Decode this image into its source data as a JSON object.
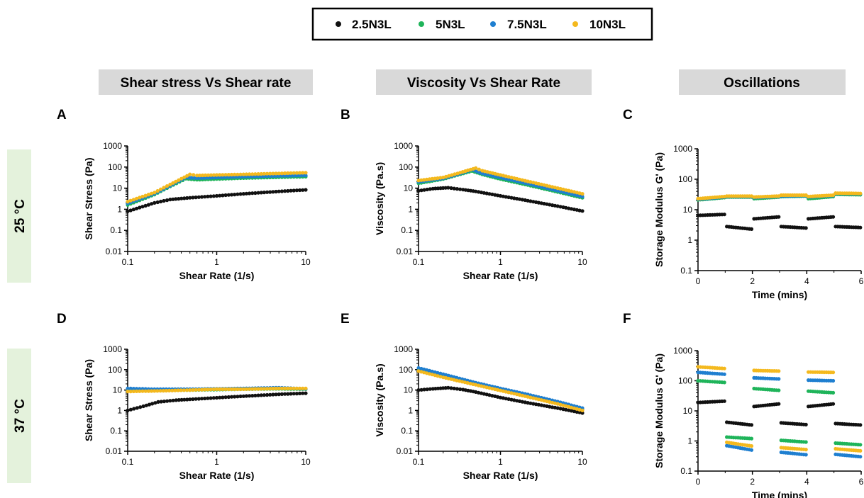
{
  "legend": {
    "entries": [
      "2.5N3L",
      "5N3L",
      "7.5N3L",
      "10N3L"
    ]
  },
  "columns": [
    "Shear stress Vs Shear rate",
    "Viscosity Vs Shear Rate",
    "Oscillations"
  ],
  "rows": [
    "25 °C",
    "37 °C"
  ],
  "colors": {
    "2.5N3L": "#111111",
    "5N3L": "#1fb45a",
    "7.5N3L": "#1f7fd0",
    "10N3L": "#f4b91e",
    "header_bg": "#d9d9d9",
    "row_bg": "#e4f2dc"
  },
  "chart_data": [
    {
      "panel": "A",
      "type": "line",
      "xscale": "log",
      "yscale": "log",
      "xlabel": "Shear Rate (1/s)",
      "ylabel": "Shear Stress (Pa)",
      "xlim": [
        0.1,
        10
      ],
      "ylim": [
        0.01,
        1000
      ],
      "xticks": [
        "0.1",
        "1",
        "10"
      ],
      "yticks": [
        "0.01",
        "0.1",
        "1",
        "10",
        "100",
        "1000"
      ],
      "series": [
        {
          "name": "2.5N3L",
          "x": [
            0.1,
            0.2,
            0.3,
            0.5,
            1,
            2,
            5,
            10
          ],
          "y": [
            0.8,
            2.0,
            2.9,
            3.5,
            4.3,
            5.4,
            7.0,
            8.3
          ]
        },
        {
          "name": "5N3L",
          "x": [
            0.1,
            0.2,
            0.3,
            0.45,
            0.6,
            1,
            2,
            5,
            10
          ],
          "y": [
            1.6,
            5.0,
            12,
            28,
            25,
            27,
            30,
            33,
            35
          ]
        },
        {
          "name": "7.5N3L",
          "x": [
            0.1,
            0.2,
            0.3,
            0.45,
            0.6,
            1,
            2,
            5,
            10
          ],
          "y": [
            1.9,
            5.5,
            13,
            32,
            30,
            32,
            35,
            38,
            40
          ]
        },
        {
          "name": "10N3L",
          "x": [
            0.1,
            0.2,
            0.3,
            0.5,
            0.6,
            1,
            2,
            5,
            10
          ],
          "y": [
            2.3,
            6.2,
            15,
            45,
            40,
            42,
            45,
            50,
            54
          ]
        }
      ]
    },
    {
      "panel": "B",
      "type": "line",
      "xscale": "log",
      "yscale": "log",
      "xlabel": "Shear Rate (1/s)",
      "ylabel": "Viscosity (Pa.s)",
      "xlim": [
        0.1,
        10
      ],
      "ylim": [
        0.01,
        1000
      ],
      "xticks": [
        "0.1",
        "1",
        "10"
      ],
      "yticks": [
        "0.01",
        "0.1",
        "1",
        "10",
        "100",
        "1000"
      ],
      "series": [
        {
          "name": "2.5N3L",
          "x": [
            0.1,
            0.15,
            0.23,
            0.35,
            0.5,
            1,
            2,
            5,
            10
          ],
          "y": [
            7.5,
            9.5,
            10.5,
            8.5,
            7,
            4.3,
            2.7,
            1.4,
            0.83
          ]
        },
        {
          "name": "5N3L",
          "x": [
            0.1,
            0.2,
            0.3,
            0.45,
            0.6,
            1,
            2,
            5,
            10
          ],
          "y": [
            17,
            27,
            42,
            65,
            45,
            27,
            15,
            6.6,
            3.5
          ]
        },
        {
          "name": "7.5N3L",
          "x": [
            0.1,
            0.2,
            0.3,
            0.45,
            0.6,
            1,
            2,
            5,
            10
          ],
          "y": [
            20,
            29,
            45,
            75,
            50,
            32,
            17.5,
            7.6,
            4.0
          ]
        },
        {
          "name": "10N3L",
          "x": [
            0.1,
            0.2,
            0.3,
            0.5,
            0.6,
            1,
            2,
            5,
            10
          ],
          "y": [
            23,
            32,
            50,
            90,
            67,
            42,
            22.5,
            10,
            5.4
          ]
        }
      ]
    },
    {
      "panel": "C",
      "type": "scatter",
      "xscale": "linear",
      "yscale": "log",
      "xlabel": "Time (mins)",
      "ylabel": "Storage Modulus G' (Pa)",
      "xlim": [
        0,
        6
      ],
      "ylim": [
        0.1,
        1000
      ],
      "xticks": [
        "0",
        "2",
        "4",
        "6"
      ],
      "yticks": [
        "0.1",
        "1",
        "10",
        "100",
        "1000"
      ],
      "series": [
        {
          "name": "2.5N3L",
          "x": [
            0,
            1,
            1,
            2,
            2,
            3,
            3,
            4,
            4,
            5,
            5,
            6
          ],
          "y": [
            6.5,
            7.0,
            2.8,
            2.3,
            5.0,
            5.8,
            2.8,
            2.5,
            5.0,
            5.8,
            2.8,
            2.6
          ]
        },
        {
          "name": "5N3L",
          "x": [
            0,
            1,
            1,
            2,
            2,
            3,
            3,
            4,
            4,
            5,
            5,
            6
          ],
          "y": [
            21,
            25,
            26,
            26,
            23,
            26,
            27,
            28,
            23,
            27,
            32,
            31
          ]
        },
        {
          "name": "7.5N3L",
          "x": [
            0,
            1,
            1,
            2,
            2,
            3,
            3,
            4,
            4,
            5,
            5,
            6
          ],
          "y": [
            22,
            26,
            27,
            27,
            25,
            27,
            28,
            29,
            26,
            29,
            34,
            33
          ]
        },
        {
          "name": "10N3L",
          "x": [
            0,
            1,
            1,
            2,
            2,
            3,
            3,
            4,
            4,
            5,
            5,
            6
          ],
          "y": [
            23,
            27,
            28,
            28,
            26,
            28,
            30,
            30,
            27,
            30,
            35,
            34
          ]
        }
      ]
    },
    {
      "panel": "D",
      "type": "line",
      "xscale": "log",
      "yscale": "log",
      "xlabel": "Shear Rate (1/s)",
      "ylabel": "Shear Stress (Pa)",
      "xlim": [
        0.1,
        10
      ],
      "ylim": [
        0.01,
        1000
      ],
      "xticks": [
        "0.1",
        "1",
        "10"
      ],
      "yticks": [
        "0.01",
        "0.1",
        "1",
        "10",
        "100",
        "1000"
      ],
      "series": [
        {
          "name": "2.5N3L",
          "x": [
            0.1,
            0.15,
            0.22,
            0.35,
            0.5,
            1,
            2,
            5,
            10
          ],
          "y": [
            1.0,
            1.6,
            2.6,
            3.2,
            3.5,
            4.2,
            5.0,
            6.2,
            7.0
          ]
        },
        {
          "name": "5N3L",
          "x": [
            0.1,
            0.2,
            0.5,
            1,
            2,
            5,
            10
          ],
          "y": [
            9,
            9.5,
            10,
            10.5,
            11,
            11.5,
            11
          ]
        },
        {
          "name": "7.5N3L",
          "x": [
            0.1,
            0.2,
            0.5,
            1,
            2,
            5,
            10
          ],
          "y": [
            12,
            11,
            11,
            11.5,
            12,
            13,
            11.5
          ]
        },
        {
          "name": "10N3L",
          "x": [
            0.1,
            0.2,
            0.5,
            1,
            2,
            5,
            10
          ],
          "y": [
            8.5,
            9,
            10,
            11,
            11,
            12,
            12
          ]
        }
      ]
    },
    {
      "panel": "E",
      "type": "line",
      "xscale": "log",
      "yscale": "log",
      "xlabel": "Shear Rate (1/s)",
      "ylabel": "Viscosity (Pa.s)",
      "xlim": [
        0.1,
        10
      ],
      "ylim": [
        0.01,
        1000
      ],
      "xticks": [
        "0.1",
        "1",
        "10"
      ],
      "yticks": [
        "0.01",
        "0.1",
        "1",
        "10",
        "100",
        "1000"
      ],
      "series": [
        {
          "name": "2.5N3L",
          "x": [
            0.1,
            0.15,
            0.23,
            0.35,
            0.5,
            1,
            2,
            5,
            10
          ],
          "y": [
            10,
            11.5,
            13,
            10.5,
            8,
            4.3,
            2.5,
            1.3,
            0.75
          ]
        },
        {
          "name": "5N3L",
          "x": [
            0.1,
            0.2,
            0.5,
            1,
            2,
            5,
            10
          ],
          "y": [
            90,
            45,
            19,
            10,
            5.5,
            2.3,
            1.1
          ]
        },
        {
          "name": "7.5N3L",
          "x": [
            0.1,
            0.2,
            0.5,
            1,
            2,
            5,
            10
          ],
          "y": [
            120,
            60,
            23,
            12,
            6.5,
            2.7,
            1.3
          ]
        },
        {
          "name": "10N3L",
          "x": [
            0.1,
            0.2,
            0.5,
            1,
            2,
            5,
            10
          ],
          "y": [
            85,
            42,
            18,
            9.5,
            5.0,
            2.1,
            1.0
          ]
        }
      ]
    },
    {
      "panel": "F",
      "type": "scatter",
      "xscale": "linear",
      "yscale": "log",
      "xlabel": "Time (mins)",
      "ylabel": "Storage Modulus G' (Pa)",
      "xlim": [
        0,
        6
      ],
      "ylim": [
        0.1,
        1000
      ],
      "xticks": [
        "0",
        "2",
        "4",
        "6"
      ],
      "yticks": [
        "0.1",
        "1",
        "10",
        "100",
        "1000"
      ],
      "series": [
        {
          "name": "2.5N3L",
          "x": [
            0,
            1,
            1,
            2,
            2,
            3,
            3,
            4,
            4,
            5,
            5,
            6
          ],
          "y": [
            19,
            21,
            4.2,
            3.4,
            14,
            17,
            4.0,
            3.5,
            14,
            17,
            3.8,
            3.4
          ]
        },
        {
          "name": "5N3L",
          "x": [
            0,
            1,
            1,
            2,
            2,
            3,
            3,
            4,
            4,
            5,
            5,
            6
          ],
          "y": [
            100,
            88,
            1.35,
            1.2,
            55,
            48,
            1.05,
            0.92,
            45,
            40,
            0.85,
            0.75
          ]
        },
        {
          "name": "7.5N3L",
          "x": [
            0,
            1,
            1,
            2,
            2,
            3,
            3,
            4,
            4,
            5,
            5,
            6
          ],
          "y": [
            190,
            165,
            0.7,
            0.5,
            125,
            115,
            0.42,
            0.35,
            105,
            100,
            0.36,
            0.3
          ]
        },
        {
          "name": "10N3L",
          "x": [
            0,
            1,
            1,
            2,
            2,
            3,
            3,
            4,
            4,
            5,
            5,
            6
          ],
          "y": [
            290,
            255,
            0.9,
            0.68,
            220,
            210,
            0.6,
            0.52,
            195,
            190,
            0.55,
            0.47
          ]
        }
      ]
    }
  ]
}
